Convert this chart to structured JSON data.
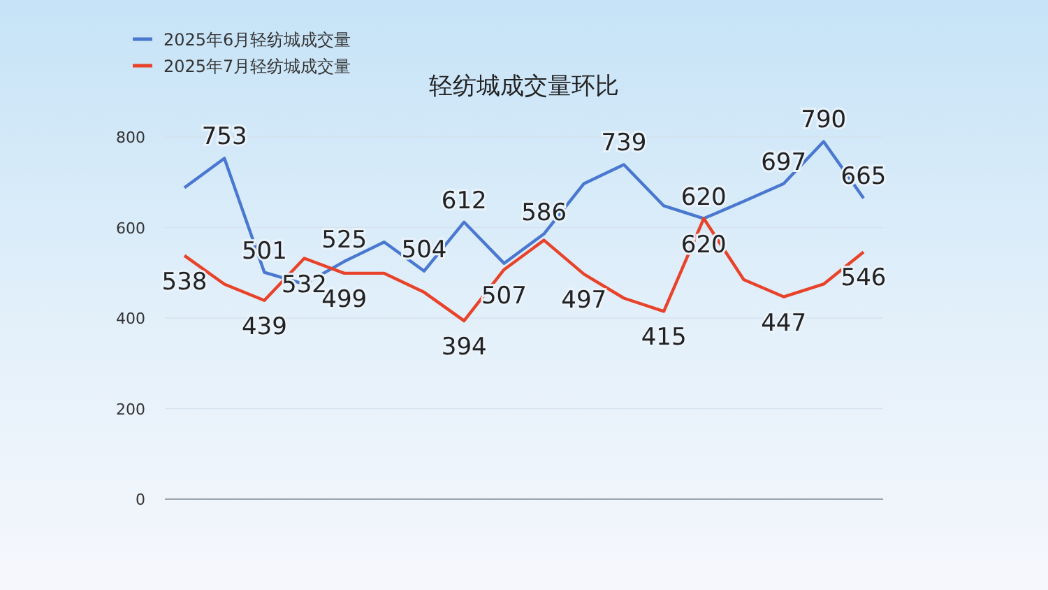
{
  "chart_data": {
    "type": "line",
    "title": "轻纺城成交量环比",
    "categories": [
      null,
      null,
      null,
      null,
      null,
      null,
      null,
      null,
      null,
      null,
      null,
      null,
      null,
      null,
      null,
      null,
      null,
      null
    ],
    "series": [
      {
        "name": "2025年6月轻纺城成交量",
        "color": "#4a78d0",
        "values": [
          688,
          753,
          501,
          475,
          525,
          568,
          504,
          612,
          521,
          586,
          697,
          739,
          648,
          620,
          658,
          697,
          790,
          665
        ],
        "value_labels": [
          null,
          "753",
          "501",
          null,
          "525",
          null,
          "504",
          "612",
          null,
          "586",
          null,
          "739",
          null,
          "620",
          null,
          "697",
          "790",
          "665"
        ]
      },
      {
        "name": "2025年7月轻纺城成交量",
        "color": "#e8432a",
        "values": [
          538,
          475,
          439,
          532,
          499,
          499,
          457,
          394,
          507,
          572,
          497,
          444,
          415,
          620,
          485,
          447,
          475,
          546
        ],
        "value_labels": [
          "538",
          null,
          "439",
          "532",
          "499",
          null,
          null,
          "394",
          "507",
          null,
          "497",
          null,
          "415",
          "620",
          null,
          "447",
          null,
          "546"
        ]
      }
    ],
    "ylim": [
      0,
      800
    ],
    "yticks": [
      0,
      200,
      400,
      600,
      800
    ],
    "grid": "y",
    "legend": "top left",
    "marker": "none",
    "line_style": "solid"
  }
}
